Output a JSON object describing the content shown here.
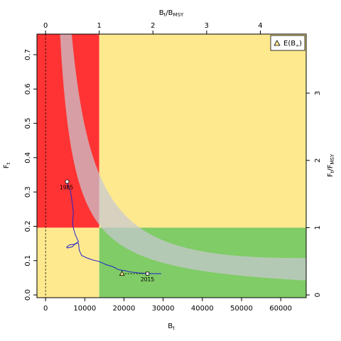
{
  "chart_data": {
    "type": "line",
    "xlabel": "B_t",
    "ylabel": "F_t",
    "top_xlabel": "B_t/B_MSY",
    "right_ylabel": "F_t/F_MSY",
    "xlim": [
      -2200,
      66500
    ],
    "ylim": [
      -0.008,
      0.76
    ],
    "x_ticks": [
      0,
      10000,
      20000,
      30000,
      40000,
      50000,
      60000
    ],
    "y_ticks": [
      0.0,
      0.1,
      0.2,
      0.3,
      0.4,
      0.5,
      0.6,
      0.7
    ],
    "top_ticks": [
      0,
      1,
      2,
      3,
      4
    ],
    "right_ticks": [
      0,
      1,
      2,
      3
    ],
    "bmsy": 13700,
    "fmsy": 0.196,
    "colors": {
      "red": "#ff3333",
      "yellow": "#ffe98f",
      "green": "#80cc66",
      "ci_band": "#c8c8d2",
      "trajectory": "#2222cc"
    },
    "year_labels": {
      "start": "1985",
      "end": "2015"
    },
    "legend": {
      "label": "E(B",
      "subscript": "∞",
      "suffix": ")"
    },
    "expected_equilibrium": {
      "B": 19500,
      "F": 0.062
    },
    "series": [
      {
        "B": [
          5500,
          5800,
          6200,
          6400,
          6600,
          6900,
          7100,
          7000,
          6900,
          7000,
          7200,
          7600,
          8400,
          7600,
          6200,
          5400,
          5500,
          6800,
          7900,
          8400,
          8600,
          9200,
          10500,
          12000,
          13500,
          14300,
          15500,
          17000,
          17800,
          18500,
          19500,
          20500,
          21500,
          22500,
          24000,
          25500,
          27500,
          29500
        ],
        "F": [
          0.33,
          0.315,
          0.308,
          0.3,
          0.285,
          0.26,
          0.24,
          0.225,
          0.21,
          0.2,
          0.19,
          0.175,
          0.155,
          0.148,
          0.146,
          0.14,
          0.137,
          0.14,
          0.152,
          0.15,
          0.13,
          0.115,
          0.108,
          0.102,
          0.098,
          0.094,
          0.088,
          0.083,
          0.079,
          0.074,
          0.072,
          0.07,
          0.067,
          0.066,
          0.064,
          0.063,
          0.062,
          0.062
        ]
      }
    ]
  }
}
